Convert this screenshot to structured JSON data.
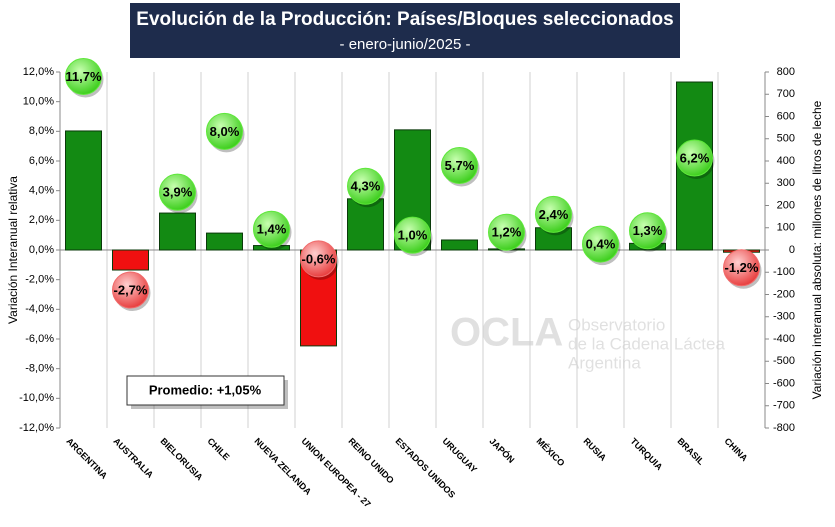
{
  "chart_data": {
    "type": "bar-bubble",
    "title": "Evolución de la Producción: Países/Bloques seleccionados",
    "subtitle": "- enero-junio/2025 -",
    "ylabel": "Variación Interanual relativa",
    "y2label": "Variación interanual absoluta: millones de litros de leche",
    "annotation": "Promedio: +1,05%",
    "watermark": [
      "OCLA",
      "Observatorio",
      "de la Cadena Láctea",
      "Argentina"
    ],
    "categories": [
      "ARGENTINA",
      "AUSTRALIA",
      "BIELORUSIA",
      "CHILE",
      "NUEVA ZELANDA",
      "UNION EUROPEA - 27",
      "REINO UNIDO",
      "ESTADOS UNIDOS",
      "URUGUAY",
      "JAPÓN",
      "MÉXICO",
      "RUSIA",
      "TURQUIA",
      "BRASIL",
      "CHINA"
    ],
    "series": [
      {
        "axis": "y2",
        "color": "#138a13",
        "negative_color": "#f01010",
        "values": [
          535,
          -90,
          166,
          76,
          20,
          -431,
          230,
          540,
          45,
          5,
          100,
          0,
          30,
          755,
          -10
        ]
      },
      {
        "axis": "y",
        "color": "#5ee83a",
        "negative_color": "#f06a6a",
        "values": [
          11.7,
          -2.7,
          3.9,
          8.0,
          1.4,
          -0.6,
          4.3,
          1.0,
          5.7,
          1.2,
          2.4,
          0.4,
          1.3,
          6.2,
          -1.2
        ],
        "value_labels": [
          "11,7%",
          "-2,7%",
          "3,9%",
          "8,0%",
          "1,4%",
          "-0,6%",
          "4,3%",
          "1,0%",
          "5,7%",
          "1,2%",
          "2,4%",
          "0,4%",
          "1,3%",
          "6,2%",
          "-1,2%"
        ]
      }
    ],
    "ylim": [
      -12,
      12
    ],
    "yticks": [
      {
        "value": -12,
        "label": "-12,0%"
      },
      {
        "value": -10,
        "label": "-10,0%"
      },
      {
        "value": -8,
        "label": "-8,0%"
      },
      {
        "value": -6,
        "label": "-6,0%"
      },
      {
        "value": -4,
        "label": "-4,0%"
      },
      {
        "value": -2,
        "label": "-2,0%"
      },
      {
        "value": 0,
        "label": "0,0%"
      },
      {
        "value": 2,
        "label": "2,0%"
      },
      {
        "value": 4,
        "label": "4,0%"
      },
      {
        "value": 6,
        "label": "6,0%"
      },
      {
        "value": 8,
        "label": "8,0%"
      },
      {
        "value": 10,
        "label": "10,0%"
      },
      {
        "value": 12,
        "label": "12,0%"
      }
    ],
    "y2lim": [
      -800,
      800
    ],
    "y2ticks": [
      -800,
      -700,
      -600,
      -500,
      -400,
      -300,
      -200,
      -100,
      0,
      100,
      200,
      300,
      400,
      500,
      600,
      700,
      800
    ]
  }
}
